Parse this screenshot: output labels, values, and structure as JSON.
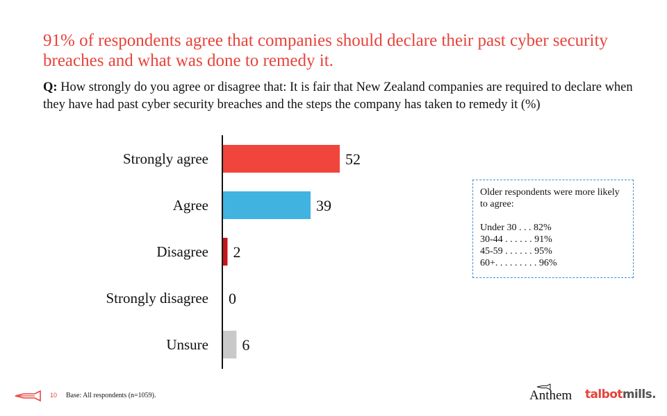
{
  "header": {
    "headline": "91% of respondents agree that companies should declare their past cyber security breaches and what was done to remedy it.",
    "question_prefix": "Q:",
    "question_text": "How strongly do you agree or disagree that: It is fair that New Zealand companies are required to declare when they have had past cyber security breaches and the steps the company has taken to remedy it (%)"
  },
  "chart_data": {
    "type": "bar",
    "orientation": "horizontal",
    "categories": [
      "Strongly agree",
      "Agree",
      "Disagree",
      "Strongly disagree",
      "Unsure"
    ],
    "values": [
      52,
      39,
      2,
      0,
      6
    ],
    "colors": [
      "#f0453c",
      "#41b3e0",
      "#c4161c",
      "#c4161c",
      "#c9c9c9"
    ],
    "title": "",
    "xlabel": "",
    "ylabel": "",
    "xlim": [
      0,
      100
    ],
    "grid": false,
    "legend": "none",
    "data_labels": true
  },
  "callout": {
    "title": "Older respondents were more likely to agree:",
    "stats": [
      "Under 30 . . . 82%",
      "30-44 . . . . . . 91%",
      "45-59 . . . . . . 95%",
      "60+. . . . . . . . . 96%"
    ]
  },
  "footer": {
    "page_number": "10",
    "base_note": "Base: All respondents (n=1059).",
    "brand_left": "Anthem",
    "brand_right_1": "talbot",
    "brand_right_2": "mills."
  }
}
